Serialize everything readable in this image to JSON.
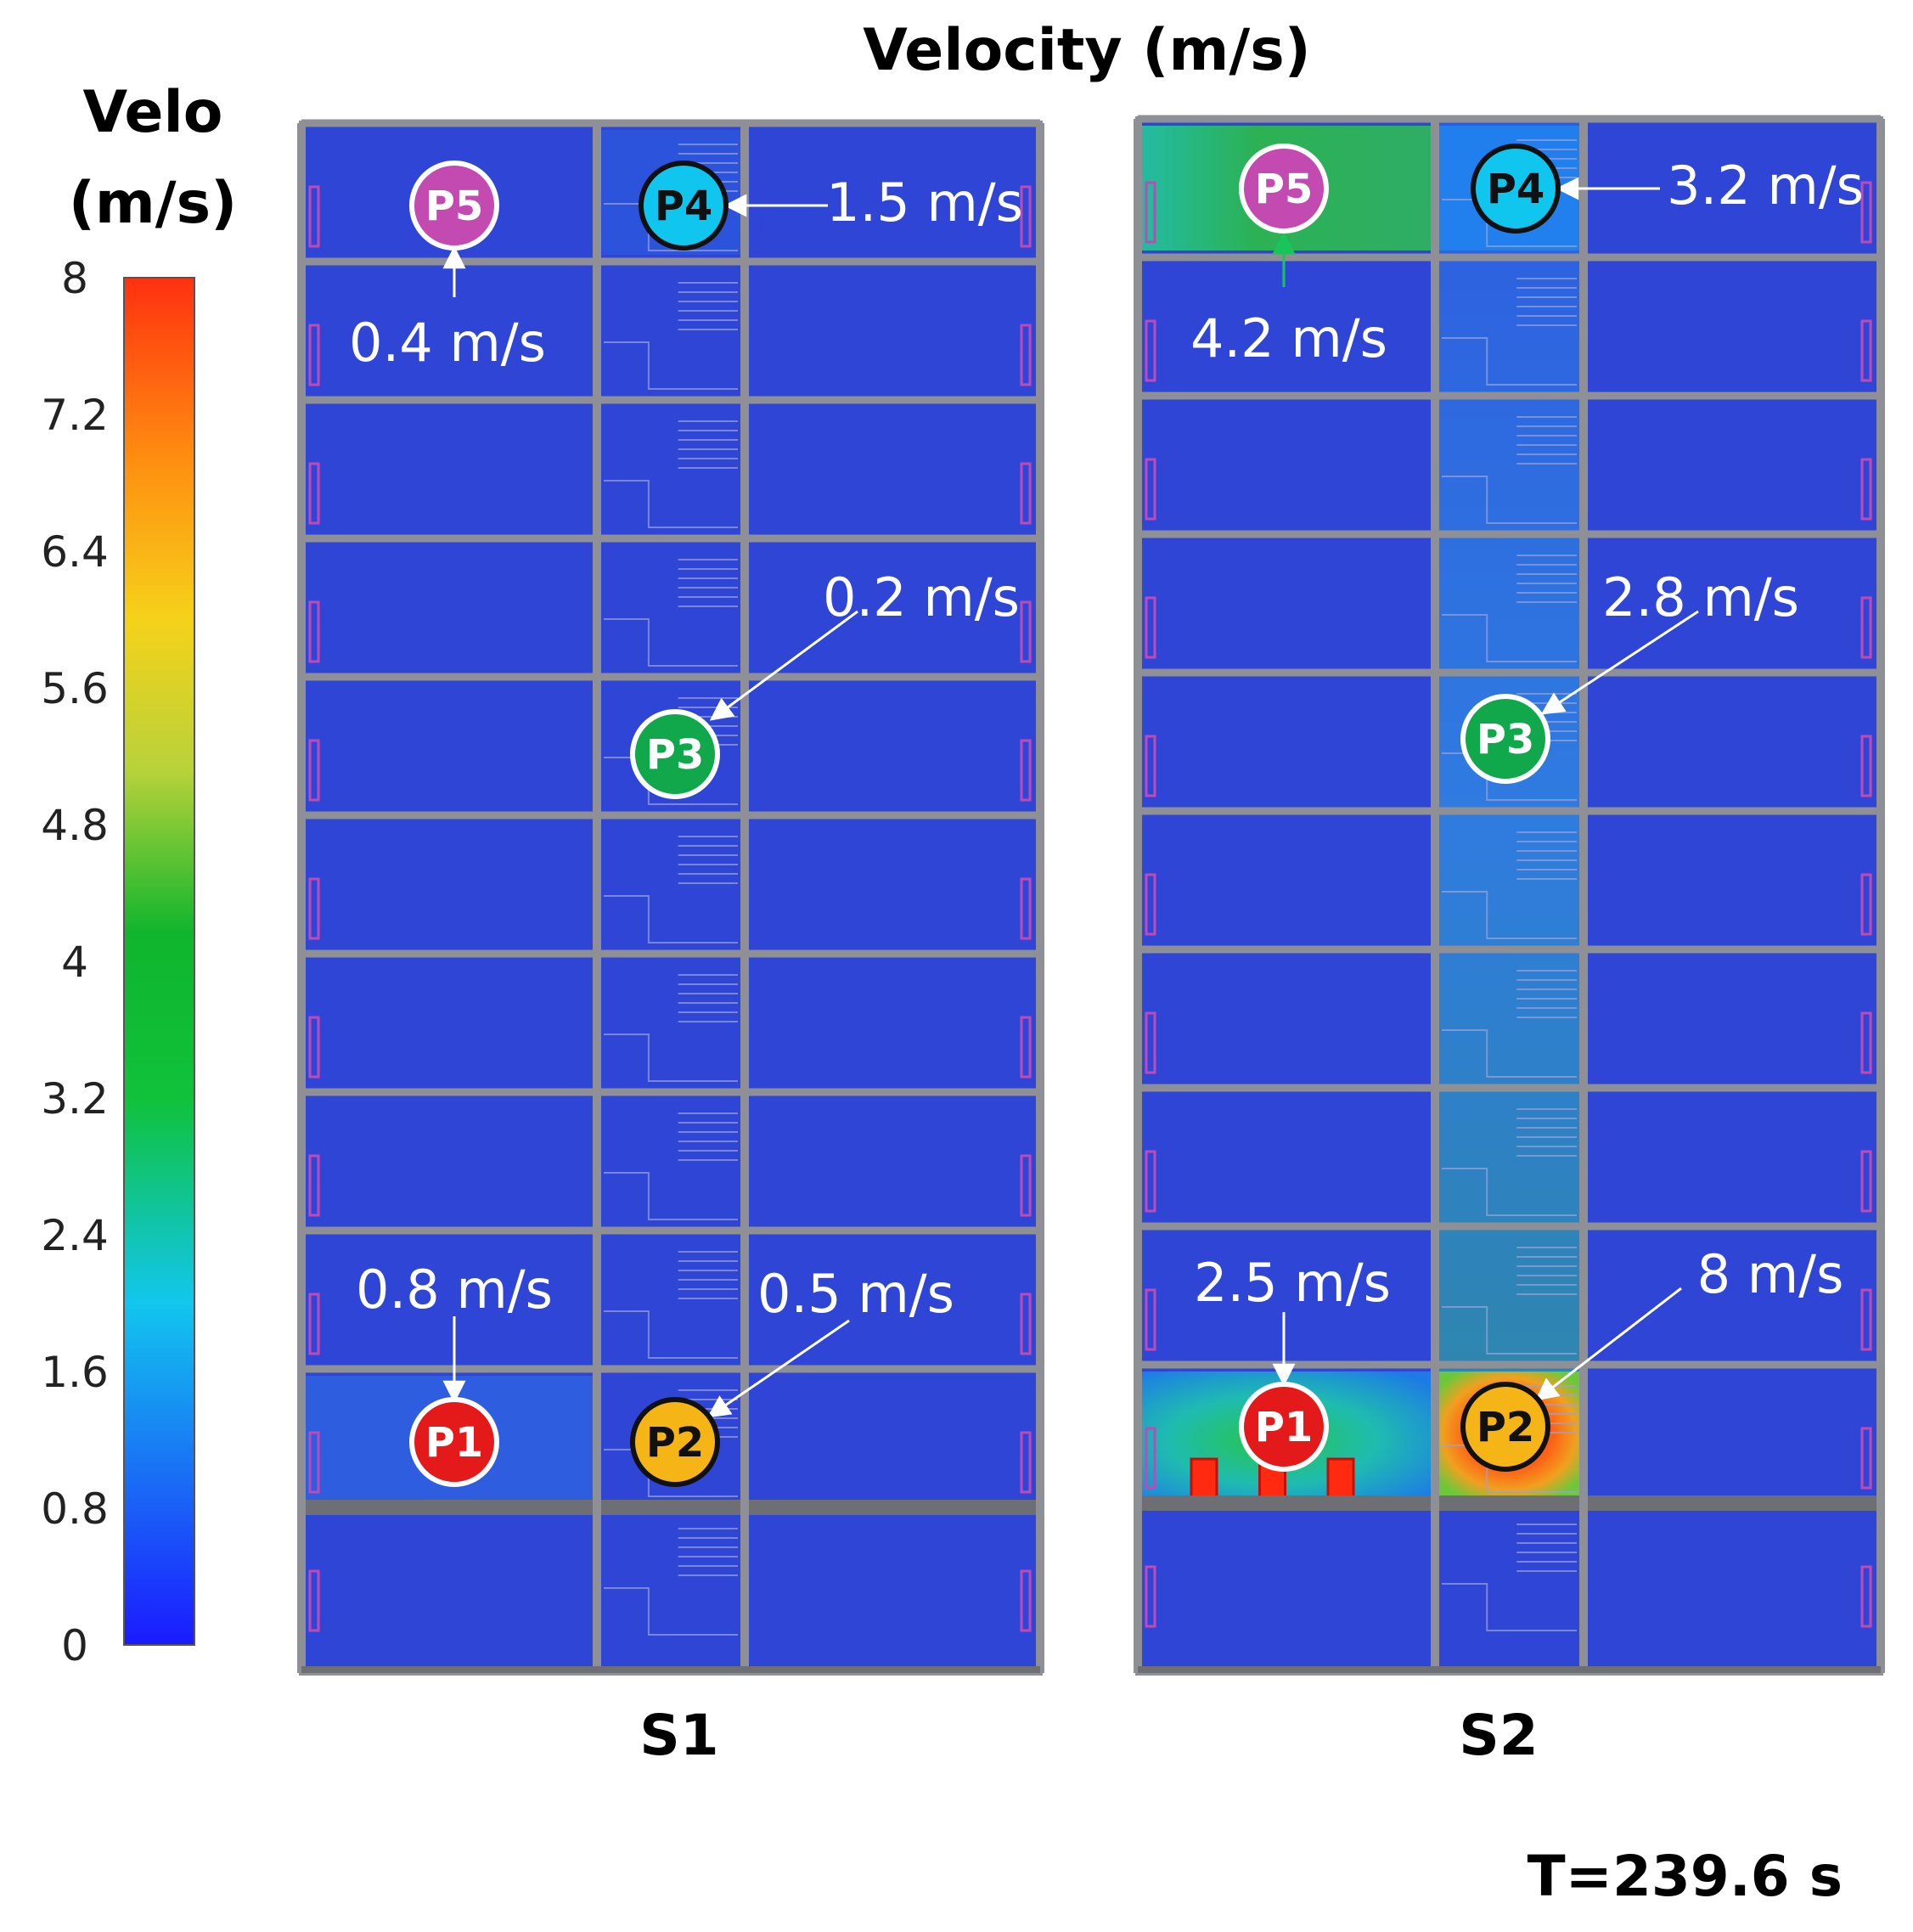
{
  "title": "Velocity (m/s)",
  "time_label": "T=239.6 s",
  "colorbar": {
    "title_line1": "Velo",
    "title_line2": "(m/s)",
    "ticks": [
      "8",
      "7.2",
      "6.4",
      "5.6",
      "4.8",
      "4",
      "3.2",
      "2.4",
      "1.6",
      "0.8",
      "0"
    ],
    "min": 0,
    "max": 8,
    "colors": [
      "#1a1aff",
      "#1a6cf5",
      "#12c6ee",
      "#10c23a",
      "#0fb52d",
      "#b8d23a",
      "#f5d21a",
      "#ff8c10",
      "#ff3010"
    ]
  },
  "colors": {
    "room": "#2f45d6",
    "wall": "#8f8f96",
    "slab": "#6e6e75",
    "marker_p1": "#e41a1a",
    "marker_p2": "#f5b516",
    "marker_p3": "#10a84a",
    "marker_p4": "#10c6ee",
    "marker_p5": "#c24ab0"
  },
  "panels": [
    {
      "label": "S1",
      "points": [
        {
          "id": "P1",
          "value": "0.8 m/s"
        },
        {
          "id": "P2",
          "value": "0.5 m/s"
        },
        {
          "id": "P3",
          "value": "0.2 m/s"
        },
        {
          "id": "P4",
          "value": "1.5 m/s"
        },
        {
          "id": "P5",
          "value": "0.4 m/s"
        }
      ]
    },
    {
      "label": "S2",
      "points": [
        {
          "id": "P1",
          "value": "2.5 m/s"
        },
        {
          "id": "P2",
          "value": "8 m/s"
        },
        {
          "id": "P3",
          "value": "2.8 m/s"
        },
        {
          "id": "P4",
          "value": "3.2 m/s"
        },
        {
          "id": "P5",
          "value": "4.2 m/s"
        }
      ]
    }
  ]
}
